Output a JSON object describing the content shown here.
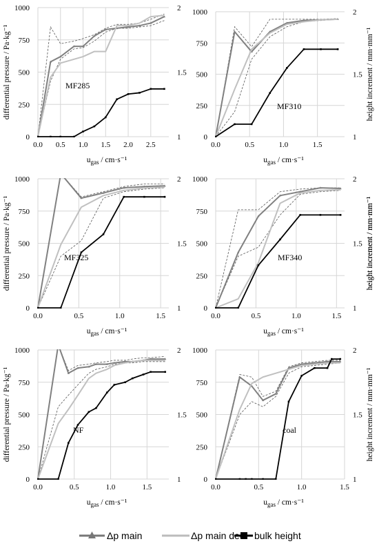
{
  "figure": {
    "legend": [
      {
        "label": "Δp main",
        "color": "#777777",
        "marker": "triangle"
      },
      {
        "label": "Δp main dec",
        "color": "#bbbbbb",
        "marker": "none"
      },
      {
        "label": "bulk height",
        "color": "#000000",
        "marker": "square"
      }
    ],
    "ylabel_left": "differential pressure / Pa·kg⁻¹",
    "ylabel_right": "height increment / mm·mm⁻¹",
    "xlabel": "u_gas / cm·s⁻¹"
  },
  "chart_data": [
    {
      "type": "line",
      "name": "MF285",
      "xlim": [
        0,
        2.9
      ],
      "ylim_left": [
        0,
        1000
      ],
      "ylim_right": [
        1,
        2
      ],
      "xticks": [
        0.0,
        0.5,
        1.0,
        1.5,
        2.0,
        2.5
      ],
      "xtick_labels": [
        "0.0",
        "0.5",
        "1.0",
        "1.5",
        "2.0",
        "2.5"
      ],
      "ylabel_shown": true,
      "xlabel_shown": true,
      "right_label_shown": false,
      "series": [
        {
          "name": "Δp main",
          "axis": "left",
          "x": [
            0,
            0.28,
            0.5,
            0.8,
            1.0,
            1.25,
            1.5,
            1.75,
            2.0,
            2.25,
            2.5,
            2.8
          ],
          "y": [
            0,
            580,
            620,
            700,
            700,
            780,
            830,
            840,
            850,
            860,
            880,
            930
          ]
        },
        {
          "name": "Δp main dec",
          "axis": "left",
          "x": [
            0,
            0.28,
            0.5,
            0.8,
            1.0,
            1.25,
            1.5,
            1.75,
            2.0,
            2.25,
            2.5,
            2.8
          ],
          "y": [
            0,
            460,
            570,
            600,
            620,
            660,
            660,
            860,
            860,
            880,
            930,
            940
          ]
        },
        {
          "name": "bulk height",
          "axis": "right",
          "x": [
            0,
            0.28,
            0.5,
            0.8,
            1.0,
            1.25,
            1.5,
            1.75,
            2.0,
            2.25,
            2.5,
            2.8
          ],
          "y": [
            1,
            1,
            1,
            1,
            1.04,
            1.08,
            1.15,
            1.29,
            1.33,
            1.34,
            1.37,
            1.37
          ]
        }
      ],
      "band": {
        "upper": [
          0,
          850,
          720,
          740,
          760,
          790,
          840,
          870,
          870,
          880,
          910,
          950
        ],
        "lower": [
          0,
          430,
          600,
          680,
          690,
          740,
          810,
          840,
          840,
          850,
          860,
          900
        ]
      }
    },
    {
      "type": "line",
      "name": "MF310",
      "xlim": [
        0,
        1.9
      ],
      "ylim_left": [
        0,
        1000
      ],
      "ylim_right": [
        1,
        2
      ],
      "xticks": [
        0.0,
        0.5,
        1.0,
        1.5
      ],
      "xtick_labels": [
        "0.0",
        "0.5",
        "1.0",
        "1.5"
      ],
      "ylabel_shown": false,
      "xlabel_shown": true,
      "right_label_shown": true,
      "series": [
        {
          "name": "Δp main",
          "axis": "left",
          "x": [
            0,
            0.28,
            0.53,
            0.8,
            1.05,
            1.3,
            1.55,
            1.8
          ],
          "y": [
            0,
            840,
            680,
            840,
            910,
            930,
            935,
            940
          ]
        },
        {
          "name": "Δp main dec",
          "axis": "left",
          "x": [
            0,
            0.28,
            0.53,
            0.8,
            1.05,
            1.3,
            1.55,
            1.8
          ],
          "y": [
            0,
            380,
            700,
            830,
            900,
            920,
            935,
            940
          ]
        },
        {
          "name": "bulk height",
          "axis": "right",
          "x": [
            0,
            0.28,
            0.53,
            0.8,
            1.05,
            1.3,
            1.55,
            1.8
          ],
          "y": [
            1,
            1.1,
            1.1,
            1.35,
            1.55,
            1.7,
            1.7,
            1.7
          ]
        }
      ],
      "band": {
        "upper": [
          0,
          880,
          720,
          940,
          940,
          940,
          940,
          945
        ],
        "lower": [
          0,
          200,
          620,
          800,
          880,
          920,
          930,
          940
        ]
      }
    },
    {
      "type": "line",
      "name": "MF325",
      "xlim": [
        0,
        1.6
      ],
      "ylim_left": [
        0,
        1000
      ],
      "ylim_right": [
        1,
        2
      ],
      "xticks": [
        0.0,
        0.5,
        1.0,
        1.5
      ],
      "xtick_labels": [
        "0.0",
        "0.5",
        "1.0",
        "1.5"
      ],
      "ylabel_shown": true,
      "xlabel_shown": true,
      "right_label_shown": true,
      "series": [
        {
          "name": "Δp main",
          "axis": "left",
          "x": [
            0,
            0.28,
            0.53,
            0.8,
            1.05,
            1.3,
            1.55
          ],
          "y": [
            0,
            1040,
            850,
            890,
            930,
            940,
            945
          ]
        },
        {
          "name": "Δp main dec",
          "axis": "left",
          "x": [
            0,
            0.28,
            0.53,
            0.8,
            1.05,
            1.3,
            1.55
          ],
          "y": [
            0,
            490,
            780,
            870,
            910,
            930,
            935
          ]
        },
        {
          "name": "bulk height",
          "axis": "right",
          "x": [
            0,
            0.28,
            0.53,
            0.8,
            1.05,
            1.3,
            1.55
          ],
          "y": [
            1,
            1,
            1.43,
            1.57,
            1.86,
            1.86,
            1.86
          ]
        }
      ],
      "band": {
        "upper": [
          0,
          1040,
          860,
          900,
          940,
          960,
          960
        ],
        "lower": [
          0,
          400,
          520,
          850,
          900,
          920,
          930
        ]
      }
    },
    {
      "type": "line",
      "name": "MF340",
      "xlim": [
        0,
        1.6
      ],
      "ylim_left": [
        0,
        1000
      ],
      "ylim_right": [
        1,
        2
      ],
      "xticks": [
        0.0,
        0.5,
        1.0,
        1.5
      ],
      "xtick_labels": [
        "0.0",
        "0.5",
        "1.0",
        "1.5"
      ],
      "ylabel_shown": false,
      "xlabel_shown": true,
      "right_label_shown": true,
      "series": [
        {
          "name": "Δp main",
          "axis": "left",
          "x": [
            0,
            0.28,
            0.53,
            0.8,
            1.05,
            1.3,
            1.55
          ],
          "y": [
            0,
            430,
            710,
            870,
            900,
            930,
            925
          ]
        },
        {
          "name": "Δp main dec",
          "axis": "left",
          "x": [
            0,
            0.28,
            0.53,
            0.8,
            1.05,
            1.3,
            1.55
          ],
          "y": [
            0,
            70,
            350,
            810,
            890,
            910,
            915
          ]
        },
        {
          "name": "bulk height",
          "axis": "right",
          "x": [
            0,
            0.28,
            0.53,
            0.8,
            1.05,
            1.3,
            1.55
          ],
          "y": [
            1,
            1,
            1.33,
            1.53,
            1.72,
            1.72,
            1.72
          ]
        }
      ],
      "band": {
        "upper": [
          0,
          760,
          760,
          900,
          920,
          930,
          930
        ],
        "lower": [
          0,
          400,
          470,
          720,
          880,
          900,
          910
        ]
      }
    },
    {
      "type": "line",
      "name": "NF",
      "xlim": [
        0,
        1.8
      ],
      "ylim_left": [
        0,
        1000
      ],
      "ylim_right": [
        1,
        2
      ],
      "xticks": [
        0.0,
        0.5,
        1.0,
        1.5
      ],
      "xtick_labels": [
        "0.0",
        "0.5",
        "1.0",
        "1.5"
      ],
      "ylabel_shown": true,
      "xlabel_shown": true,
      "right_label_shown": false,
      "series": [
        {
          "name": "Δp main",
          "axis": "left",
          "x": [
            0,
            0.28,
            0.42,
            0.55,
            0.7,
            0.8,
            0.95,
            1.05,
            1.2,
            1.3,
            1.45,
            1.55,
            1.75
          ],
          "y": [
            0,
            1040,
            820,
            860,
            870,
            890,
            890,
            900,
            910,
            910,
            920,
            930,
            930
          ]
        },
        {
          "name": "Δp main dec",
          "axis": "left",
          "x": [
            0,
            0.28,
            0.42,
            0.55,
            0.7,
            0.8,
            0.95,
            1.05,
            1.2,
            1.3,
            1.45,
            1.55,
            1.75
          ],
          "y": [
            0,
            430,
            540,
            650,
            780,
            820,
            850,
            880,
            900,
            910,
            920,
            920,
            920
          ]
        },
        {
          "name": "bulk height",
          "axis": "right",
          "x": [
            0,
            0.28,
            0.42,
            0.55,
            0.7,
            0.8,
            0.95,
            1.05,
            1.2,
            1.3,
            1.45,
            1.55,
            1.75
          ],
          "y": [
            1,
            1,
            1.28,
            1.42,
            1.52,
            1.55,
            1.67,
            1.73,
            1.75,
            1.78,
            1.81,
            1.83,
            1.83
          ]
        }
      ],
      "band": {
        "upper": [
          0,
          1040,
          840,
          880,
          890,
          900,
          910,
          920,
          920,
          930,
          940,
          940,
          950
        ],
        "lower": [
          0,
          560,
          650,
          730,
          820,
          850,
          870,
          890,
          900,
          900,
          910,
          910,
          910
        ]
      }
    },
    {
      "type": "line",
      "name": "coal",
      "xlim": [
        0,
        1.5
      ],
      "ylim_left": [
        0,
        1000
      ],
      "ylim_right": [
        1,
        2
      ],
      "xticks": [
        0.0,
        0.5,
        1.0,
        1.5
      ],
      "xtick_labels": [
        "0.0",
        "0.5",
        "1.0",
        "1.5"
      ],
      "ylabel_shown": false,
      "xlabel_shown": true,
      "right_label_shown": true,
      "series": [
        {
          "name": "Δp main",
          "axis": "left",
          "x": [
            0,
            0.28,
            0.42,
            0.55,
            0.7,
            0.85,
            1.0,
            1.15,
            1.3,
            1.45
          ],
          "y": [
            0,
            790,
            720,
            610,
            660,
            860,
            890,
            900,
            910,
            910
          ]
        },
        {
          "name": "Δp main dec",
          "axis": "left",
          "x": [
            0,
            0.28,
            0.42,
            0.55,
            0.7,
            0.85,
            1.0,
            1.15,
            1.3,
            1.45
          ],
          "y": [
            0,
            540,
            740,
            790,
            820,
            850,
            880,
            890,
            900,
            900
          ]
        },
        {
          "name": "bulk height",
          "axis": "right",
          "x": [
            0,
            0.28,
            0.35,
            0.42,
            0.55,
            0.7,
            0.85,
            1.0,
            1.15,
            1.3,
            1.35,
            1.45
          ],
          "y": [
            1,
            1,
            1,
            1,
            1,
            1,
            1.6,
            1.8,
            1.86,
            1.86,
            1.93,
            1.93
          ]
        }
      ],
      "band": {
        "upper": [
          0,
          810,
          790,
          640,
          680,
          870,
          900,
          910,
          920,
          920
        ],
        "lower": [
          0,
          500,
          600,
          560,
          640,
          820,
          870,
          880,
          890,
          900
        ]
      }
    }
  ]
}
